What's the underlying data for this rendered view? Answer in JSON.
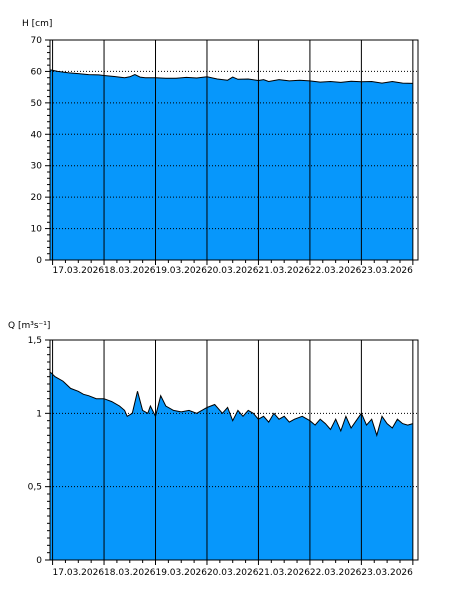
{
  "colors": {
    "fill": "#0797fb",
    "line": "#000000",
    "grid_dotted": "#000000",
    "frame": "#000000"
  },
  "chart_data": [
    {
      "type": "area",
      "ylabel": "H [cm]",
      "ylim": [
        0,
        70
      ],
      "y_ticks": [
        "0",
        "10",
        "20",
        "30",
        "40",
        "50",
        "60",
        "70"
      ],
      "x_tick_labels": [
        "17.03.2026",
        "18.03.2026",
        "19.03.2026",
        "20.03.2026",
        "21.03.2026",
        "22.03.2026",
        "23.03.2026"
      ],
      "x_range_days": [
        16.95,
        24.1
      ],
      "dotted_gridlines": [
        60,
        50,
        40,
        30,
        20,
        10
      ],
      "vertical_gridlines": "at each day boundary",
      "series": [
        {
          "x_days": [
            16.96,
            17.1,
            17.3,
            17.5,
            17.7,
            17.9,
            18.0,
            18.2,
            18.4,
            18.5,
            18.6,
            18.7,
            18.8,
            19.0,
            19.2,
            19.4,
            19.6,
            19.8,
            20.0,
            20.2,
            20.4,
            20.5,
            20.6,
            20.8,
            21.0,
            21.1,
            21.2,
            21.4,
            21.6,
            21.8,
            22.0,
            22.2,
            22.4,
            22.6,
            22.8,
            23.0,
            23.2,
            23.4,
            23.6,
            23.8,
            24.0
          ],
          "values": [
            60.5,
            60.0,
            59.6,
            59.3,
            59.0,
            58.9,
            58.7,
            58.4,
            58.0,
            58.3,
            59.0,
            58.2,
            58.0,
            58.0,
            57.8,
            57.8,
            58.1,
            57.9,
            58.3,
            57.6,
            57.2,
            58.2,
            57.5,
            57.6,
            57.1,
            57.4,
            56.8,
            57.4,
            57.0,
            57.2,
            57.0,
            56.6,
            56.8,
            56.5,
            56.9,
            56.7,
            56.8,
            56.3,
            56.8,
            56.3,
            56.2
          ]
        }
      ]
    },
    {
      "type": "area",
      "ylabel": "Q [m³s⁻¹]",
      "ylim": [
        0,
        1.5
      ],
      "y_ticks": [
        "0",
        "0,5",
        "1",
        "1,5"
      ],
      "x_tick_labels": [
        "17.03.2026",
        "18.03.2026",
        "19.03.2026",
        "20.03.2026",
        "21.03.2026",
        "22.03.2026",
        "23.03.2026"
      ],
      "x_range_days": [
        16.95,
        24.1
      ],
      "dotted_gridlines": [
        1.0,
        0.5
      ],
      "vertical_gridlines": "at each day boundary",
      "series": [
        {
          "x_days": [
            16.96,
            17.05,
            17.2,
            17.35,
            17.5,
            17.6,
            17.7,
            17.85,
            18.0,
            18.15,
            18.3,
            18.4,
            18.45,
            18.55,
            18.65,
            18.75,
            18.85,
            18.9,
            19.0,
            19.1,
            19.2,
            19.35,
            19.5,
            19.65,
            19.8,
            19.9,
            20.0,
            20.15,
            20.3,
            20.4,
            20.5,
            20.6,
            20.7,
            20.8,
            20.9,
            21.0,
            21.1,
            21.2,
            21.3,
            21.4,
            21.5,
            21.6,
            21.7,
            21.85,
            22.0,
            22.1,
            22.2,
            22.3,
            22.4,
            22.5,
            22.6,
            22.7,
            22.8,
            22.9,
            23.0,
            23.1,
            23.2,
            23.3,
            23.4,
            23.5,
            23.6,
            23.7,
            23.8,
            23.9,
            24.0
          ],
          "values": [
            1.28,
            1.25,
            1.22,
            1.17,
            1.15,
            1.13,
            1.12,
            1.1,
            1.1,
            1.08,
            1.05,
            1.02,
            0.98,
            1.0,
            1.15,
            1.02,
            1.0,
            1.05,
            0.98,
            1.12,
            1.05,
            1.02,
            1.01,
            1.02,
            1.0,
            1.02,
            1.04,
            1.06,
            1.0,
            1.04,
            0.95,
            1.02,
            0.98,
            1.02,
            1.0,
            0.96,
            0.98,
            0.94,
            1.0,
            0.96,
            0.98,
            0.94,
            0.96,
            0.98,
            0.95,
            0.92,
            0.96,
            0.93,
            0.89,
            0.96,
            0.88,
            0.98,
            0.9,
            0.95,
            1.0,
            0.92,
            0.96,
            0.85,
            0.98,
            0.93,
            0.9,
            0.96,
            0.93,
            0.92,
            0.93
          ]
        }
      ]
    }
  ]
}
